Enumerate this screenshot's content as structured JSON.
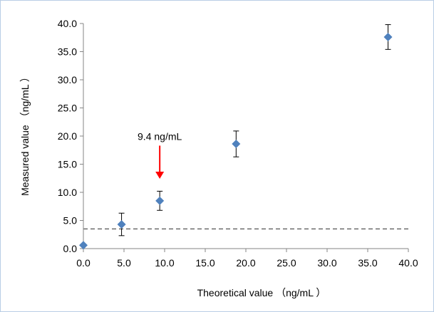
{
  "chart_data": {
    "type": "scatter",
    "title": "",
    "xlabel": "Theoretical value （ng/mL ）",
    "ylabel": "Measured value （ng/mL ）",
    "xlim": [
      0,
      40
    ],
    "ylim": [
      0,
      40
    ],
    "x_ticks": [
      0,
      5,
      10,
      15,
      20,
      25,
      30,
      35,
      40
    ],
    "y_ticks": [
      0,
      5,
      10,
      15,
      20,
      25,
      30,
      35,
      40
    ],
    "x_tick_labels": [
      "0.0",
      "5.0",
      "10.0",
      "15.0",
      "20.0",
      "25.0",
      "30.0",
      "35.0",
      "40.0"
    ],
    "y_tick_labels": [
      "0.0",
      "5.0",
      "10.0",
      "15.0",
      "20.0",
      "25.0",
      "30.0",
      "35.0",
      "40.0"
    ],
    "grid": false,
    "points": [
      {
        "x": 0.0,
        "y": 0.6,
        "err": 0.0
      },
      {
        "x": 4.7,
        "y": 4.3,
        "err": 2.0
      },
      {
        "x": 9.4,
        "y": 8.5,
        "err": 1.7
      },
      {
        "x": 18.8,
        "y": 18.6,
        "err": 2.3
      },
      {
        "x": 37.5,
        "y": 37.6,
        "err": 2.2
      }
    ],
    "marker_color": "#4f81bd",
    "reference_line": {
      "y": 3.5,
      "style": "dashed",
      "color": "#555555"
    },
    "annotation": {
      "text": "9.4 ng/mL",
      "x": 9.4,
      "y_text": 19.3,
      "arrow_from": 18.3,
      "arrow_to": 12.4,
      "arrow_color": "#ff0000"
    }
  }
}
